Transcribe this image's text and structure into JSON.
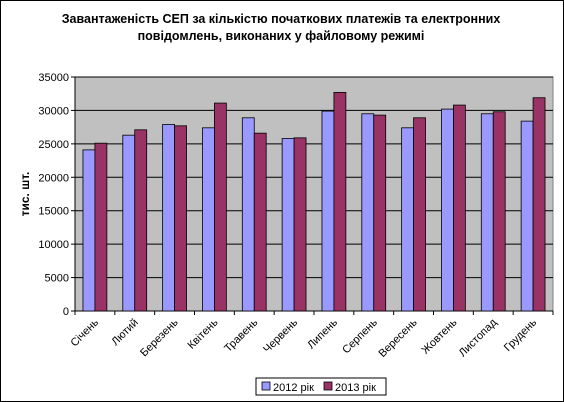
{
  "chart_data": {
    "type": "bar",
    "title": "Завантаженість СЕП за кількістю початкових платежів та електронних повідомлень, виконаних у файловому режимі",
    "xlabel": "",
    "ylabel": "тис. шт.",
    "ylim": [
      0,
      35000
    ],
    "yticks": [
      "0",
      "5000",
      "10000",
      "15000",
      "20000",
      "25000",
      "30000",
      "35000"
    ],
    "categories": [
      "Січень",
      "Лютий",
      "Березень",
      "Квітень",
      "Травень",
      "Червень",
      "Липень",
      "Серпень",
      "Вересень",
      "Жовтень",
      "Листопад",
      "Грудень"
    ],
    "series": [
      {
        "name": "2012 рік",
        "color": "#9999ff",
        "values": [
          24100,
          26300,
          27900,
          27400,
          28900,
          25800,
          29900,
          29500,
          27400,
          30200,
          29500,
          28400
        ]
      },
      {
        "name": "2013 рік",
        "color": "#993366",
        "values": [
          25100,
          27100,
          27700,
          31100,
          26600,
          25900,
          32700,
          29300,
          28900,
          30800,
          29800,
          31900
        ]
      }
    ],
    "grid": true,
    "plot_background": "#c0c0c0",
    "legend_position": "bottom"
  }
}
